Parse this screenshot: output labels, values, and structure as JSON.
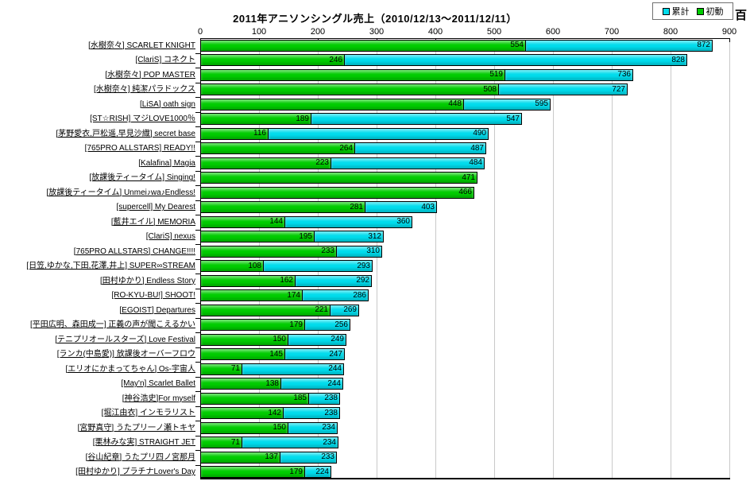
{
  "title": "2011年アニソンシングル売上（2010/12/13～2011/12/11）",
  "unit_label": "百",
  "legend": {
    "cumulative": {
      "label": "累計",
      "color": "#00dcec"
    },
    "first_week": {
      "label": "初動",
      "color": "#00cc00"
    }
  },
  "chart_data": {
    "type": "bar",
    "orientation": "horizontal",
    "title": "2011年アニソンシングル売上（2010/12/13～2011/12/11）",
    "unit": "百",
    "xlim": [
      0,
      900
    ],
    "x_ticks": [
      0,
      100,
      200,
      300,
      400,
      500,
      600,
      700,
      800,
      900
    ],
    "grid": true,
    "legend_position": "top-right",
    "series_names": [
      "累計",
      "初動"
    ],
    "colors": {
      "cumulative": "#00dcec",
      "first_week": "#00cc00",
      "gridline": "#c9c9c9"
    },
    "rows": [
      {
        "label": "[水樹奈々] SCARLET KNIGHT",
        "first_week": 554,
        "cumulative": 872
      },
      {
        "label": "[ClariS] コネクト",
        "first_week": 246,
        "cumulative": 828
      },
      {
        "label": "[水樹奈々] POP MASTER",
        "first_week": 519,
        "cumulative": 736
      },
      {
        "label": "[水樹奈々] 純潔パラドックス",
        "first_week": 508,
        "cumulative": 727
      },
      {
        "label": "[LiSA] oath sign",
        "first_week": 448,
        "cumulative": 595
      },
      {
        "label": "[ST☆RISH] マジLOVE1000％",
        "first_week": 189,
        "cumulative": 547
      },
      {
        "label": "[茅野愛衣,戸松遥,早見沙織] secret base",
        "first_week": 116,
        "cumulative": 490
      },
      {
        "label": "[765PRO ALLSTARS] READY!!",
        "first_week": 264,
        "cumulative": 487
      },
      {
        "label": "[Kalafina] Magia",
        "first_week": 223,
        "cumulative": 484
      },
      {
        "label": "[放課後ティータイム] Singing!",
        "first_week": 471,
        "cumulative": null
      },
      {
        "label": "[放課後ティータイム] Unmei♪wa♪Endless!",
        "first_week": 466,
        "cumulative": null
      },
      {
        "label": "[supercell] My Dearest",
        "first_week": 281,
        "cumulative": 403
      },
      {
        "label": "[藍井エイル] MEMORIA",
        "first_week": 144,
        "cumulative": 360
      },
      {
        "label": "[ClariS] nexus",
        "first_week": 195,
        "cumulative": 312
      },
      {
        "label": "[765PRO ALLSTARS] CHANGE!!!!",
        "first_week": 233,
        "cumulative": 310
      },
      {
        "label": "[日笠,ゆかな,下田,花澤,井上] SUPER∞STREAM",
        "first_week": 108,
        "cumulative": 293
      },
      {
        "label": "[田村ゆかり] Endless Story",
        "first_week": 162,
        "cumulative": 292
      },
      {
        "label": "[RO-KYU-BU!] SHOOT!",
        "first_week": 174,
        "cumulative": 286
      },
      {
        "label": "[EGOIST] Departures",
        "first_week": 221,
        "cumulative": 269
      },
      {
        "label": "[平田広明、森田成一] 正義の声が聞こえるかい",
        "first_week": 179,
        "cumulative": 256
      },
      {
        "label": "[テニプリオールスターズ] Love Festival",
        "first_week": 150,
        "cumulative": 249
      },
      {
        "label": "[ランカ(中島愛)] 放課後オーバーフロウ",
        "first_week": 145,
        "cumulative": 247
      },
      {
        "label": "[エリオにかまってちゃん] Os-宇宙人",
        "first_week": 71,
        "cumulative": 244
      },
      {
        "label": "[May'n] Scarlet Ballet",
        "first_week": 138,
        "cumulative": 244
      },
      {
        "label": "[神谷浩史]For myself",
        "first_week": 185,
        "cumulative": 238
      },
      {
        "label": "[堀江由衣] インモラリスト",
        "first_week": 142,
        "cumulative": 238
      },
      {
        "label": "[宮野真守] うたプリ一ノ瀬トキヤ",
        "first_week": 150,
        "cumulative": 234
      },
      {
        "label": "[栗林みな実] STRAIGHT JET",
        "first_week": 71,
        "cumulative": 234
      },
      {
        "label": "[谷山紀章] うたプリ四ノ宮那月",
        "first_week": 137,
        "cumulative": 233
      },
      {
        "label": "[田村ゆかり] プラチナLover's Day",
        "first_week": 179,
        "cumulative": 224
      }
    ]
  }
}
